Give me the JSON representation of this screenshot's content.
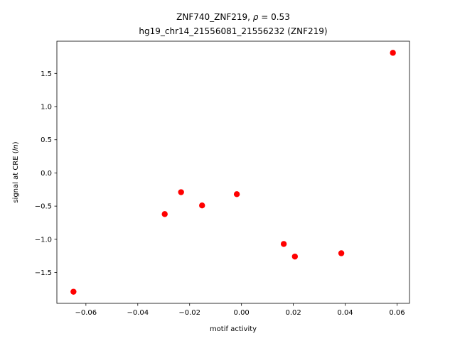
{
  "chart_data": {
    "type": "scatter",
    "title_line1_pre": "ZNF740_ZNF219, ",
    "title_line1_rho": "ρ",
    "title_line1_post": " = 0.53",
    "title_line2": "hg19_chr14_21556081_21556232 (ZNF219)",
    "xlabel": "motif activity",
    "ylabel_pre": "signal at CRE (",
    "ylabel_italic": "ln",
    "ylabel_post": ")",
    "xlim": [
      -0.0712,
      0.0648
    ],
    "ylim": [
      -1.965,
      1.985
    ],
    "xticks": [
      -0.06,
      -0.04,
      -0.02,
      0.0,
      0.02,
      0.04,
      0.06
    ],
    "xtick_labels": [
      "−0.06",
      "−0.04",
      "−0.02",
      "0.00",
      "0.02",
      "0.04",
      "0.06"
    ],
    "yticks": [
      -1.5,
      -1.0,
      -0.5,
      0.0,
      0.5,
      1.0,
      1.5
    ],
    "ytick_labels": [
      "−1.5",
      "−1.0",
      "−0.5",
      "0.0",
      "0.5",
      "1.0",
      "1.5"
    ],
    "grid": false,
    "point_color": "#ff0000",
    "points": [
      {
        "x": -0.0648,
        "y": -1.79
      },
      {
        "x": -0.0296,
        "y": -0.62
      },
      {
        "x": -0.0233,
        "y": -0.29
      },
      {
        "x": -0.0152,
        "y": -0.49
      },
      {
        "x": -0.0018,
        "y": -0.32
      },
      {
        "x": 0.0163,
        "y": -1.07
      },
      {
        "x": 0.0206,
        "y": -1.26
      },
      {
        "x": 0.0385,
        "y": -1.21
      },
      {
        "x": 0.0584,
        "y": 1.81
      }
    ]
  }
}
